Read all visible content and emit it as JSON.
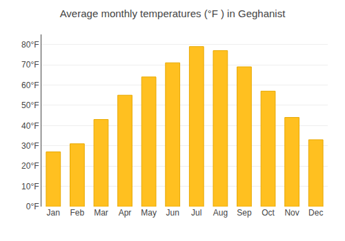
{
  "chart_data": {
    "type": "bar",
    "title": "Average monthly temperatures (°F ) in Geghanist",
    "categories": [
      "Jan",
      "Feb",
      "Mar",
      "Apr",
      "May",
      "Jun",
      "Jul",
      "Aug",
      "Sep",
      "Oct",
      "Nov",
      "Dec"
    ],
    "values": [
      27,
      31,
      43,
      55,
      64,
      71,
      79,
      77,
      69,
      57,
      44,
      33
    ],
    "color": "#FFC020",
    "ylim": [
      0,
      85
    ],
    "yticks": [
      {
        "value": 0,
        "label": "0°F"
      },
      {
        "value": 10,
        "label": "10°F"
      },
      {
        "value": 20,
        "label": "20°F"
      },
      {
        "value": 30,
        "label": "30°F"
      },
      {
        "value": 40,
        "label": "40°F"
      },
      {
        "value": 50,
        "label": "50°F"
      },
      {
        "value": 60,
        "label": "60°F"
      },
      {
        "value": 70,
        "label": "70°F"
      },
      {
        "value": 80,
        "label": "80°F"
      }
    ],
    "grid": true
  }
}
